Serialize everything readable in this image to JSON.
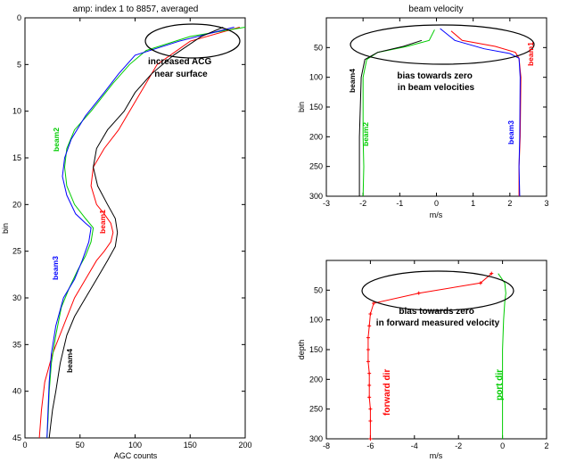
{
  "chart_data": [
    {
      "type": "line",
      "title": "amp:  index 1 to 8857, averaged",
      "xlabel": "AGC counts",
      "ylabel": "bin",
      "xlim": [
        0,
        200
      ],
      "ylim": [
        0,
        45
      ],
      "y_reversed": true,
      "x_ticks": [
        0,
        50,
        100,
        150,
        200
      ],
      "y_ticks": [
        0,
        5,
        10,
        15,
        20,
        25,
        30,
        35,
        40,
        45
      ],
      "grid": false,
      "series": [
        {
          "name": "beam1",
          "color": "#ff0000",
          "x": [
            195,
            150,
            120,
            110,
            95,
            85,
            72,
            62,
            60,
            65,
            72,
            78,
            80,
            78,
            72,
            65,
            55,
            45,
            35,
            25,
            18,
            15,
            13
          ],
          "y": [
            1,
            2.5,
            5,
            7,
            10,
            12,
            14,
            16,
            18,
            20,
            21,
            22,
            23,
            24,
            25,
            26,
            28,
            30,
            33,
            36,
            39,
            42,
            45
          ]
        },
        {
          "name": "beam2",
          "color": "#00cc00",
          "x": [
            200,
            150,
            110,
            95,
            80,
            60,
            45,
            38,
            36,
            38,
            45,
            55,
            62,
            60,
            55,
            48,
            40,
            33,
            28,
            24,
            22,
            21,
            20
          ],
          "y": [
            1,
            2,
            3.5,
            5,
            7,
            10,
            12,
            14,
            16,
            18,
            20,
            21.5,
            22.5,
            24,
            25.5,
            27,
            29,
            31,
            34,
            37,
            40,
            43,
            45
          ]
        },
        {
          "name": "beam3",
          "color": "#0000ff",
          "x": [
            190,
            140,
            100,
            85,
            72,
            55,
            42,
            36,
            34,
            38,
            46,
            55,
            60,
            58,
            52,
            45,
            35,
            28,
            24,
            22,
            21,
            20
          ],
          "y": [
            1,
            2.5,
            4,
            6,
            8,
            10.5,
            13,
            15,
            17,
            19,
            21,
            22,
            22.5,
            24,
            26,
            28,
            30,
            33,
            36,
            39,
            42,
            45
          ]
        },
        {
          "name": "beam4",
          "color": "#000000",
          "x": [
            180,
            160,
            135,
            115,
            100,
            90,
            75,
            65,
            62,
            66,
            75,
            82,
            84,
            82,
            75,
            65,
            55,
            45,
            38,
            32,
            28,
            25,
            23,
            22
          ],
          "y": [
            1,
            2,
            4,
            6,
            8,
            10,
            12,
            14,
            16,
            18,
            20,
            21.5,
            23,
            24.5,
            26,
            28,
            30,
            32,
            34,
            37,
            40,
            42,
            44,
            45
          ]
        }
      ],
      "annotations": [
        {
          "lines": [
            "increased ACG",
            "near surface"
          ]
        }
      ],
      "series_labels": [
        {
          "text": "beam2",
          "color": "#00cc00"
        },
        {
          "text": "beam1",
          "color": "#ff0000"
        },
        {
          "text": "beam3",
          "color": "#0000ff"
        },
        {
          "text": "beam4",
          "color": "#000000"
        }
      ]
    },
    {
      "type": "line",
      "title": "beam velocity",
      "xlabel": "m/s",
      "ylabel": "bin",
      "xlim": [
        -3,
        3
      ],
      "ylim": [
        0,
        300
      ],
      "y_reversed": true,
      "x_ticks": [
        -3,
        -2,
        -1,
        0,
        1,
        2,
        3
      ],
      "y_ticks": [
        50,
        100,
        150,
        200,
        250,
        300
      ],
      "grid": false,
      "series": [
        {
          "name": "beam1",
          "color": "#ff0000",
          "x": [
            0.4,
            0.7,
            1.6,
            2.15,
            2.25,
            2.3,
            2.28,
            2.25,
            2.25
          ],
          "y": [
            22,
            38,
            48,
            58,
            68,
            100,
            200,
            250,
            300
          ]
        },
        {
          "name": "beam2",
          "color": "#00cc00",
          "x": [
            -0.05,
            -0.2,
            -0.8,
            -1.6,
            -1.9,
            -2.0,
            -2.0,
            -1.98,
            -2.0
          ],
          "y": [
            20,
            38,
            48,
            58,
            70,
            100,
            200,
            250,
            300
          ]
        },
        {
          "name": "beam3",
          "color": "#0000ff",
          "x": [
            0.1,
            0.5,
            1.3,
            2.0,
            2.25,
            2.28,
            2.27,
            2.25,
            2.27
          ],
          "y": [
            18,
            38,
            52,
            60,
            68,
            100,
            200,
            250,
            300
          ]
        },
        {
          "name": "beam4",
          "color": "#000000",
          "x": [
            -0.4,
            -0.9,
            -1.6,
            -1.95,
            -2.05,
            -2.1,
            -2.1,
            -2.1
          ],
          "y": [
            38,
            48,
            58,
            70,
            100,
            200,
            250,
            300
          ]
        }
      ],
      "annotations": [
        {
          "lines": [
            "bias towards zero",
            "in beam velocities"
          ]
        }
      ],
      "series_labels": [
        {
          "text": "beam1",
          "color": "#ff0000"
        },
        {
          "text": "beam4",
          "color": "#000000"
        },
        {
          "text": "beam2",
          "color": "#00cc00"
        },
        {
          "text": "beam3",
          "color": "#0000ff"
        }
      ]
    },
    {
      "type": "line",
      "title": "",
      "xlabel": "m/s",
      "ylabel": "depth",
      "xlim": [
        -8,
        2
      ],
      "ylim": [
        0,
        300
      ],
      "y_reversed": true,
      "x_ticks": [
        -8,
        -6,
        -4,
        -2,
        0,
        2
      ],
      "y_ticks": [
        50,
        100,
        150,
        200,
        250,
        300
      ],
      "grid": false,
      "series": [
        {
          "name": "forward dir",
          "color": "#ff0000",
          "markers": true,
          "x": [
            -0.5,
            -1.0,
            -3.8,
            -5.85,
            -6.0,
            -6.05,
            -6.1,
            -6.1,
            -6.1,
            -6.05,
            -6.05,
            -6.05,
            -6.0,
            -6.0,
            -6.0
          ],
          "y": [
            22,
            38,
            55,
            72,
            90,
            110,
            130,
            150,
            170,
            190,
            210,
            230,
            250,
            270,
            300
          ]
        },
        {
          "name": "port dir",
          "color": "#00cc00",
          "markers": false,
          "x": [
            -0.2,
            0.1,
            0.15,
            0.1,
            0.05,
            0.0,
            0.0,
            0.0
          ],
          "y": [
            22,
            38,
            55,
            70,
            100,
            150,
            200,
            300
          ]
        }
      ],
      "annotations": [
        {
          "lines": [
            "bias towards zero",
            "in forward measured velocity"
          ]
        }
      ],
      "series_labels": [
        {
          "text": "forward dir",
          "color": "#ff0000"
        },
        {
          "text": "port dir",
          "color": "#00cc00"
        }
      ]
    }
  ]
}
